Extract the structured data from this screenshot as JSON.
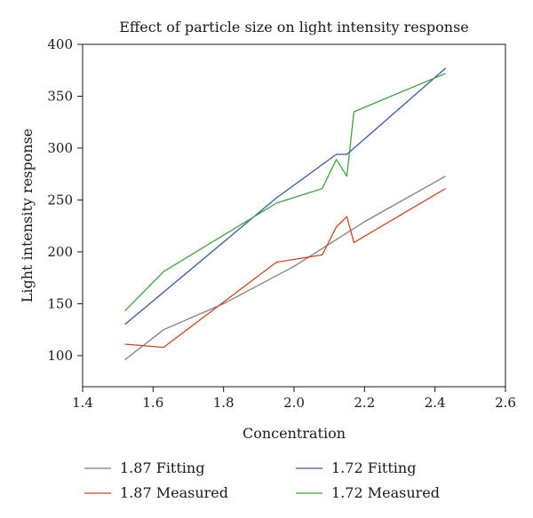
{
  "chart_data": {
    "type": "line",
    "title": "Effect of particle size on light intensity response",
    "xlabel": "Concentration",
    "ylabel": "Light intensity response",
    "xlim": [
      1.4,
      2.6
    ],
    "ylim": [
      70,
      400
    ],
    "xticks": [
      "1.4",
      "1.6",
      "1.8",
      "2.0",
      "2.2",
      "2.4",
      "2.6"
    ],
    "xtick_values": [
      1.4,
      1.6,
      1.8,
      2.0,
      2.2,
      2.4,
      2.6
    ],
    "yticks": [
      "100",
      "150",
      "200",
      "250",
      "300",
      "350",
      "400"
    ],
    "ytick_values": [
      100,
      150,
      200,
      250,
      300,
      350,
      400
    ],
    "grid": false,
    "legend_position": "bottom",
    "series": [
      {
        "name": "1.87 Fitting",
        "color": "#7f7f7f",
        "x": [
          1.52,
          1.63,
          1.8,
          2.0,
          2.2,
          2.43
        ],
        "y": [
          96,
          125,
          150,
          186,
          229,
          273
        ]
      },
      {
        "name": "1.72 Fitting",
        "color": "#3a57a7",
        "x": [
          1.52,
          1.95,
          2.12,
          2.15,
          2.43
        ],
        "y": [
          130,
          252,
          294,
          294,
          377
        ]
      },
      {
        "name": "1.87 Measured",
        "color": "#d2441e",
        "x": [
          1.52,
          1.63,
          1.95,
          2.08,
          2.12,
          2.15,
          2.17,
          2.43
        ],
        "y": [
          111,
          108,
          190,
          197,
          224,
          234,
          209,
          261
        ]
      },
      {
        "name": "1.72 Measured",
        "color": "#3ea23e",
        "x": [
          1.52,
          1.63,
          1.95,
          2.08,
          2.12,
          2.15,
          2.17,
          2.43
        ],
        "y": [
          143,
          181,
          247,
          261,
          289,
          273,
          335,
          372
        ]
      }
    ]
  }
}
